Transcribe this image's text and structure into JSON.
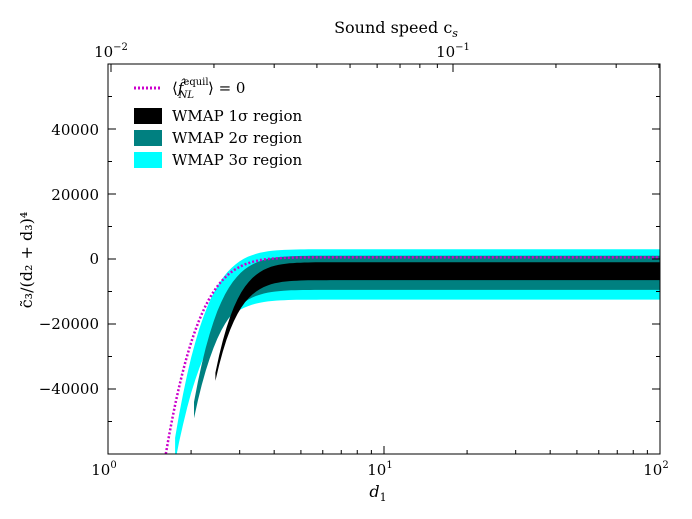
{
  "chart_data": {
    "type": "area",
    "title": "",
    "xlabel": "d",
    "xlabel_sub": "1",
    "ylabel": "c̃₃/(d₂ + d₃)⁴",
    "xscale": "log",
    "xlim": [
      1,
      100
    ],
    "ylim": [
      -60000,
      60000
    ],
    "x_ticks": [
      {
        "base": "10",
        "exp": "0"
      },
      {
        "base": "10",
        "exp": "1"
      },
      {
        "base": "10",
        "exp": "2"
      }
    ],
    "y_ticks": [
      "40000",
      "20000",
      "0",
      "−20000",
      "−40000"
    ],
    "y_tick_values": [
      40000,
      20000,
      0,
      -20000,
      -40000
    ],
    "top_axis": {
      "label": "Sound speed c",
      "label_sub": "s",
      "ticks": [
        {
          "base": "10",
          "exp": "−2",
          "value": 0.01
        },
        {
          "base": "10",
          "exp": "−1",
          "value": 0.1
        }
      ]
    },
    "legend": {
      "placement": "upper-left",
      "entries": [
        {
          "key": "fnl",
          "label_pre": "⟨",
          "label_f": "f̂",
          "label_sup": "equil",
          "label_sub": "NL",
          "label_post": "⟩ = 0",
          "color": "#cc00cc",
          "style": "dotted"
        },
        {
          "key": "s1",
          "label": "WMAP 1σ region",
          "color": "#000000",
          "style": "fill"
        },
        {
          "key": "s2",
          "label": "WMAP 2σ region",
          "color": "#008080",
          "style": "fill"
        },
        {
          "key": "s3",
          "label": "WMAP 3σ region",
          "color": "#00ffff",
          "style": "fill"
        }
      ]
    },
    "series": [
      {
        "name": "WMAP 3σ region",
        "color": "#00ffff",
        "start_x": 1.75,
        "upper_asymptote": 3000,
        "lower_asymptote": -12500,
        "start_y": -55000
      },
      {
        "name": "WMAP 2σ region",
        "color": "#008080",
        "start_x": 2.05,
        "upper_asymptote": 1000,
        "lower_asymptote": -9500,
        "start_y": -44000
      },
      {
        "name": "WMAP 1σ region",
        "color": "#000000",
        "start_x": 2.45,
        "upper_asymptote": -1000,
        "lower_asymptote": -6500,
        "start_y": -35000
      }
    ],
    "curve": {
      "name": "⟨f̂NL equil⟩ = 0",
      "color": "#cc00cc",
      "asymptote": 500,
      "start_x": 1.62,
      "start_y": -60000
    }
  }
}
